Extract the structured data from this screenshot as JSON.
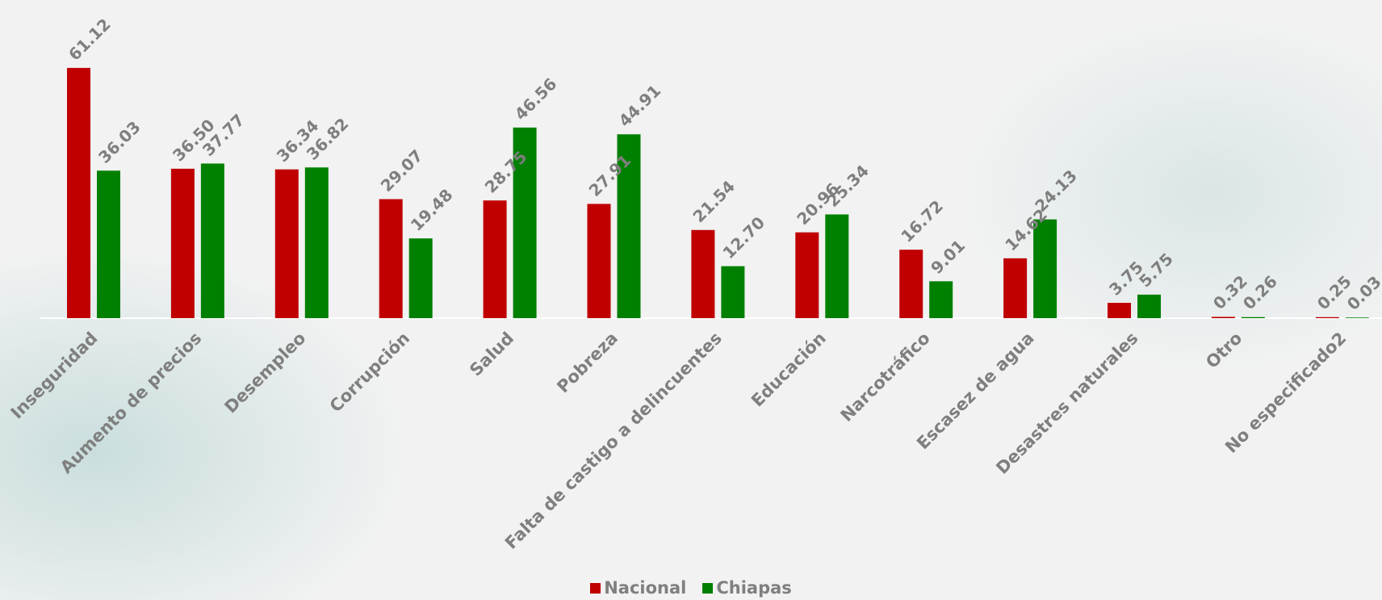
{
  "chart_data": {
    "type": "bar",
    "title": "",
    "xlabel": "",
    "ylabel": "",
    "categories": [
      "Inseguridad",
      "Aumento de precios",
      "Desempleo",
      "Corrupción",
      "Salud",
      "Pobreza",
      "Falta de castigo a delincuentes",
      "Educación",
      "Narcotráfico",
      "Escasez de agua",
      "Desastres naturales",
      "Otro",
      "No especificado2"
    ],
    "series": [
      {
        "name": "Nacional",
        "color": "#c00000",
        "values": [
          61.12,
          36.5,
          36.34,
          29.07,
          28.75,
          27.91,
          21.54,
          20.96,
          16.72,
          14.62,
          3.75,
          0.32,
          0.25
        ],
        "labels": [
          "61.12",
          "36.50",
          "36.34",
          "29.07",
          "28.75",
          "27.91",
          "21.54",
          "20.96",
          "16.72",
          "14.62",
          "3.75",
          "0.32",
          "0.25"
        ]
      },
      {
        "name": "Chiapas",
        "color": "#008000",
        "values": [
          36.03,
          37.77,
          36.82,
          19.48,
          46.56,
          44.91,
          12.7,
          25.34,
          9.01,
          24.13,
          5.75,
          0.26,
          0.03
        ],
        "labels": [
          "36.03",
          "37.77",
          "36.82",
          "19.48",
          "46.56",
          "44.91",
          "12.70",
          "25.34",
          "9.01",
          "24.13",
          "5.75",
          "0.26",
          "0.03"
        ]
      }
    ],
    "ylim": [
      0,
      70
    ],
    "grid": false,
    "legend_position": "bottom"
  }
}
